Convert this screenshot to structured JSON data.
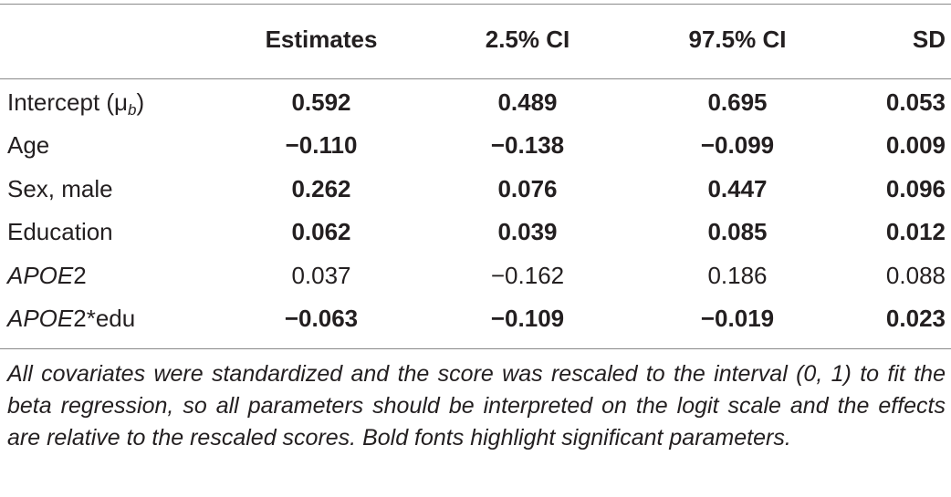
{
  "table": {
    "headers": [
      "",
      "Estimates",
      "2.5% CI",
      "97.5% CI",
      "SD"
    ],
    "rows": [
      {
        "label_prefix": "Intercept (μ",
        "label_sub": "b",
        "label_suffix": ")",
        "values": [
          "0.592",
          "0.489",
          "0.695",
          "0.053"
        ],
        "bold": [
          true,
          true,
          true,
          true
        ]
      },
      {
        "label": "Age",
        "values": [
          "−0.110",
          "−0.138",
          "−0.099",
          "0.009"
        ],
        "bold": [
          true,
          true,
          true,
          true
        ]
      },
      {
        "label": "Sex, male",
        "values": [
          "0.262",
          "0.076",
          "0.447",
          "0.096"
        ],
        "bold": [
          true,
          true,
          true,
          true
        ]
      },
      {
        "label": "Education",
        "values": [
          "0.062",
          "0.039",
          "0.085",
          "0.012"
        ],
        "bold": [
          true,
          true,
          true,
          true
        ]
      },
      {
        "label_italic": "APOE",
        "label_rest": "2",
        "values": [
          "0.037",
          "−0.162",
          "0.186",
          "0.088"
        ],
        "bold": [
          false,
          false,
          false,
          false
        ]
      },
      {
        "label_italic": "APOE",
        "label_rest": "2*edu",
        "values": [
          "−0.063",
          "−0.109",
          "−0.019",
          "0.023"
        ],
        "bold": [
          true,
          true,
          true,
          true
        ]
      }
    ],
    "footnote": "All covariates were standardized and the score was rescaled to the interval (0, 1) to fit the beta regression, so all parameters should be interpreted on the logit scale and the effects are relative to the rescaled scores. Bold fonts highlight significant parameters."
  }
}
